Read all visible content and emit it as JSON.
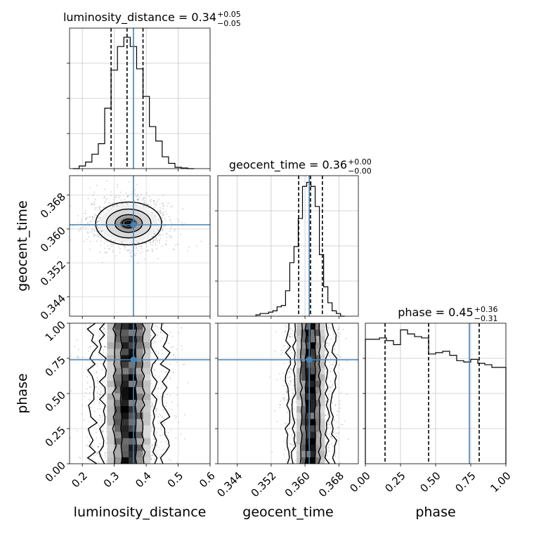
{
  "chart_data": {
    "type": "corner",
    "parameters": [
      "luminosity_distance",
      "geocent_time",
      "phase"
    ],
    "titles": [
      {
        "name": "luminosity_distance",
        "value": "0.34",
        "plus": "+0.05",
        "minus": "−0.05"
      },
      {
        "name": "geocent_time",
        "value": "0.36",
        "plus": "+0.00",
        "minus": "−0.00"
      },
      {
        "name": "phase",
        "value": "0.45",
        "plus": "+0.36",
        "minus": "−0.31"
      }
    ],
    "ranges": {
      "luminosity_distance": [
        0.16,
        0.6
      ],
      "geocent_time": [
        0.3394,
        0.3726
      ],
      "phase": [
        0,
        1
      ]
    },
    "ticks": {
      "luminosity_distance": [
        0.2,
        0.3,
        0.4,
        0.5,
        0.6
      ],
      "geocent_time": [
        0.344,
        0.352,
        0.36,
        0.368
      ],
      "phase": [
        0.0,
        0.25,
        0.5,
        0.75,
        1.0
      ]
    },
    "tick_labels": {
      "luminosity_distance": [
        "0.2",
        "0.3",
        "0.4",
        "0.5",
        "0.6"
      ],
      "geocent_time": [
        "0.344",
        "0.352",
        "0.360",
        "0.368"
      ],
      "phase": [
        "0.00",
        "0.25",
        "0.50",
        "0.75",
        "1.00"
      ]
    },
    "truths": {
      "luminosity_distance": 0.36,
      "geocent_time": 0.361,
      "phase": 0.74
    },
    "quantiles": {
      "luminosity_distance": [
        0.29,
        0.34,
        0.39
      ],
      "geocent_time": [
        0.3585,
        0.3613,
        0.3641
      ],
      "phase": [
        0.14,
        0.45,
        0.81
      ]
    },
    "histograms": {
      "luminosity_distance": {
        "edges": [
          0.17,
          0.19,
          0.21,
          0.23,
          0.25,
          0.27,
          0.29,
          0.31,
          0.33,
          0.35,
          0.37,
          0.39,
          0.41,
          0.43,
          0.45,
          0.47,
          0.49,
          0.51,
          0.53,
          0.55
        ],
        "counts": [
          0,
          0.02,
          0.05,
          0.11,
          0.19,
          0.46,
          0.75,
          0.93,
          1.0,
          0.93,
          0.76,
          0.55,
          0.32,
          0.21,
          0.09,
          0.04,
          0.01,
          0.005,
          0
        ],
        "ylim": [
          0,
          1.07
        ]
      },
      "geocent_time": {
        "edges": [
          0.3484,
          0.3494,
          0.3504,
          0.3514,
          0.3524,
          0.3534,
          0.3544,
          0.3554,
          0.3564,
          0.3574,
          0.3584,
          0.3594,
          0.3604,
          0.3614,
          0.3624,
          0.3634,
          0.3644,
          0.3654,
          0.3664,
          0.3674,
          0.3684,
          0.3694
        ],
        "counts": [
          0.01,
          0.02,
          0.02,
          0.03,
          0.04,
          0.07,
          0.08,
          0.19,
          0.4,
          0.52,
          0.73,
          0.97,
          1.0,
          0.97,
          0.82,
          0.46,
          0.22,
          0.1,
          0.04,
          0.02,
          0
        ],
        "ylim": [
          0,
          1.05
        ]
      },
      "phase": {
        "edges": [
          0,
          0.05,
          0.1,
          0.15,
          0.2,
          0.25,
          0.3,
          0.35,
          0.4,
          0.45,
          0.5,
          0.55,
          0.6,
          0.65,
          0.7,
          0.75,
          0.8,
          0.85,
          0.9,
          0.95,
          1.0
        ],
        "counts": [
          0.93,
          0.93,
          0.94,
          0.92,
          0.89,
          1.0,
          0.97,
          0.95,
          0.94,
          0.82,
          0.83,
          0.84,
          0.81,
          0.77,
          0.76,
          0.78,
          0.75,
          0.74,
          0.72,
          0.72
        ],
        "ylim": [
          0,
          1.05
        ]
      }
    },
    "truth_color": "#4682b4",
    "grid": true
  }
}
